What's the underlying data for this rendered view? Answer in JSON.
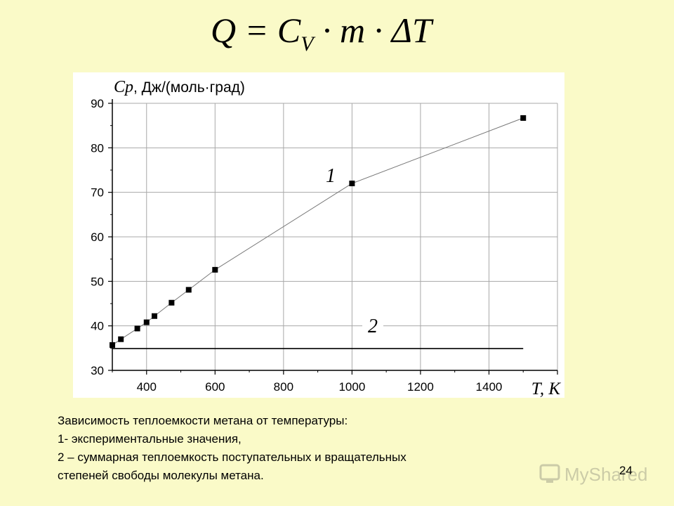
{
  "formula": {
    "lhs": "Q",
    "eq": " = ",
    "c": "C",
    "c_sub": "V",
    "rest": " · m · ΔT"
  },
  "chart_data": {
    "type": "line",
    "ylabel_symbol": "Cp",
    "ylabel_unit": ", Дж/(моль·град)",
    "xlabel": "T, K",
    "xlim": [
      300,
      1600
    ],
    "ylim": [
      30,
      90
    ],
    "xticks": [
      400,
      600,
      800,
      1000,
      1200,
      1400
    ],
    "yticks": [
      30,
      40,
      50,
      60,
      70,
      80,
      90
    ],
    "grid": true,
    "series": [
      {
        "name": "1",
        "marker": "square",
        "x": [
          300,
          325,
          373,
          400,
          423,
          473,
          523,
          600,
          1000,
          1500
        ],
        "y": [
          35.7,
          37.0,
          39.4,
          40.8,
          42.2,
          45.2,
          48.1,
          52.6,
          72.0,
          86.7
        ]
      },
      {
        "name": "2",
        "marker": "none",
        "x": [
          300,
          1500
        ],
        "y": [
          34.9,
          34.9
        ]
      }
    ],
    "annotations": [
      "1",
      "2"
    ]
  },
  "caption": {
    "line1": "Зависимость теплоемкости метана от температуры:",
    "line2": "1- экспериментальные значения,",
    "line3": "2 – суммарная теплоемкость поступательных и вращательных",
    "line4": "степеней свободы молекулы метана."
  },
  "page_number": "24",
  "watermark": "MyShared"
}
